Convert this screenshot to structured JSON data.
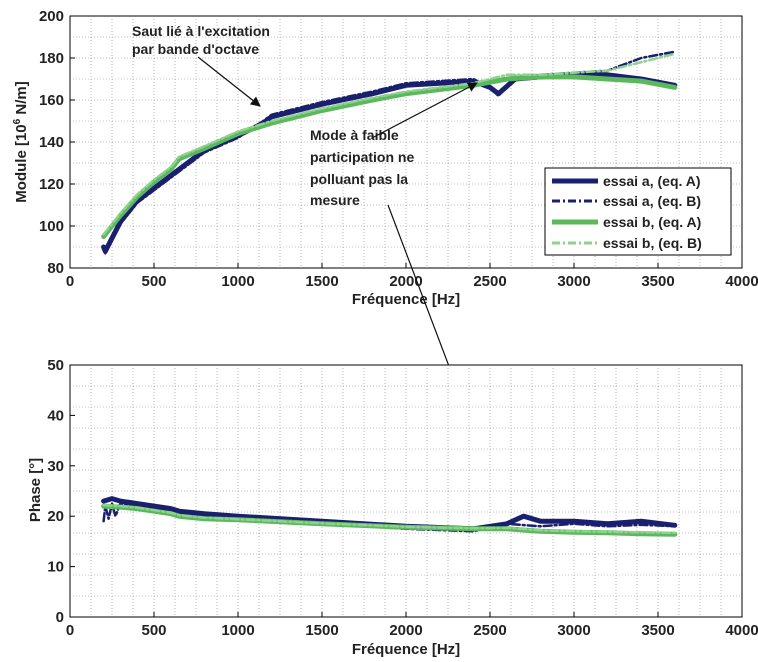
{
  "chart_data": [
    {
      "type": "line",
      "xlabel": "Fréquence [Hz]",
      "ylabel": "Module [10^6 N/m]",
      "xlim": [
        0,
        4000
      ],
      "ylim": [
        80,
        200
      ],
      "xticks": [
        0,
        500,
        1000,
        1500,
        2000,
        2500,
        3000,
        3500,
        4000
      ],
      "yticks": [
        80,
        100,
        120,
        140,
        160,
        180,
        200
      ],
      "grid": "dotted",
      "legend_position": "right",
      "series": [
        {
          "name": "essai a, (eq. A)",
          "color": "#1a1f6e",
          "style": "solid",
          "x": [
            200,
            210,
            300,
            400,
            500,
            600,
            650,
            800,
            1000,
            1150,
            1200,
            1500,
            1800,
            2000,
            2200,
            2400,
            2500,
            2550,
            2650,
            2800,
            3000,
            3200,
            3400,
            3600
          ],
          "y": [
            90,
            88,
            102,
            112,
            118,
            124,
            127,
            136,
            143,
            149,
            152,
            158,
            163,
            167,
            168,
            169,
            166,
            163,
            170,
            171,
            172,
            172,
            170,
            167
          ]
        },
        {
          "name": "essai a, (eq. B)",
          "color": "#1a1f6e",
          "style": "dashdot",
          "x": [
            200,
            210,
            300,
            400,
            500,
            600,
            650,
            800,
            1000,
            1150,
            1200,
            1500,
            1800,
            2000,
            2200,
            2400,
            2500,
            2550,
            2650,
            2800,
            3000,
            3200,
            3400,
            3600
          ],
          "y": [
            89,
            87,
            101,
            111,
            117,
            123,
            126,
            135,
            142,
            150,
            153,
            159,
            164,
            168,
            169,
            170,
            166,
            162,
            171,
            172,
            173,
            174,
            180,
            183
          ]
        },
        {
          "name": "essai b, (eq. A)",
          "color": "#5cb85c",
          "style": "solid",
          "x": [
            200,
            300,
            400,
            500,
            600,
            650,
            800,
            1000,
            1200,
            1500,
            1800,
            2000,
            2200,
            2400,
            2600,
            2800,
            3000,
            3200,
            3400,
            3600
          ],
          "y": [
            95,
            105,
            114,
            121,
            127,
            132,
            137,
            144,
            149,
            155,
            160,
            163,
            165,
            167,
            170,
            171,
            171,
            170,
            169,
            166
          ]
        },
        {
          "name": "essai b, (eq. B)",
          "color": "#8fd18f",
          "style": "dashdot",
          "x": [
            200,
            300,
            400,
            500,
            600,
            650,
            800,
            1000,
            1200,
            1500,
            1800,
            2000,
            2200,
            2400,
            2600,
            2800,
            3000,
            3200,
            3400,
            3600
          ],
          "y": [
            96,
            106,
            115,
            122,
            128,
            133,
            138,
            145,
            150,
            156,
            161,
            164,
            166,
            168,
            172,
            172,
            173,
            174,
            178,
            182
          ]
        }
      ],
      "annotations": [
        {
          "lines": [
            "Saut lié à l'excitation",
            "par bande d'octave"
          ],
          "arrow_to": [
            1150,
            152
          ]
        },
        {
          "lines": [
            "Mode à faible",
            "participation ne",
            "polluant pas la",
            "mesure"
          ],
          "arrow_to": [
            2550,
            170
          ]
        }
      ]
    },
    {
      "type": "line",
      "xlabel": "Fréquence [Hz]",
      "ylabel": "Phase [°]",
      "xlim": [
        0,
        4000
      ],
      "ylim": [
        0,
        50
      ],
      "xticks": [
        0,
        500,
        1000,
        1500,
        2000,
        2500,
        3000,
        3500,
        4000
      ],
      "yticks": [
        0,
        10,
        20,
        30,
        40,
        50
      ],
      "grid": "dotted",
      "series": [
        {
          "name": "essai a, (eq. A)",
          "color": "#1a1f6e",
          "style": "solid",
          "x": [
            200,
            250,
            300,
            400,
            500,
            600,
            650,
            800,
            1000,
            1500,
            2000,
            2400,
            2500,
            2600,
            2700,
            2800,
            3000,
            3200,
            3400,
            3600
          ],
          "y": [
            23,
            23.5,
            23,
            22.5,
            22,
            21.5,
            21,
            20.5,
            20,
            19,
            18,
            17.5,
            18,
            18.5,
            20,
            19,
            19,
            18.5,
            19,
            18.2
          ]
        },
        {
          "name": "essai a, (eq. B)",
          "color": "#1a1f6e",
          "style": "dashdot",
          "x": [
            200,
            210,
            230,
            250,
            270,
            300,
            400,
            500,
            600,
            650,
            800,
            1000,
            1500,
            2000,
            2400,
            2600,
            2800,
            3000,
            3200,
            3400,
            3600
          ],
          "y": [
            19,
            22,
            19.5,
            22.5,
            20,
            22.5,
            22,
            21.5,
            21,
            20.5,
            20,
            19.5,
            18.5,
            17.5,
            17,
            18.5,
            18,
            18.5,
            18,
            18.3,
            18
          ]
        },
        {
          "name": "essai b, (eq. A)",
          "color": "#5cb85c",
          "style": "solid",
          "x": [
            200,
            300,
            400,
            500,
            600,
            650,
            800,
            1000,
            1500,
            2000,
            2400,
            2600,
            2800,
            3000,
            3200,
            3400,
            3600
          ],
          "y": [
            22,
            21.8,
            21.5,
            21,
            20.5,
            20,
            19.5,
            19.3,
            18.5,
            17.8,
            17.5,
            17.5,
            17,
            16.8,
            16.7,
            16.5,
            16.4
          ]
        },
        {
          "name": "essai b, (eq. B)",
          "color": "#8fd18f",
          "style": "dashdot",
          "x": [
            200,
            300,
            400,
            500,
            600,
            650,
            800,
            1000,
            1500,
            2000,
            2400,
            2600,
            2800,
            3000,
            3200,
            3400,
            3600
          ],
          "y": [
            22.2,
            22,
            21.7,
            21.2,
            20.7,
            20.2,
            19.7,
            19.4,
            18.6,
            17.9,
            17.6,
            17.7,
            17.2,
            17,
            16.9,
            16.8,
            16.7
          ]
        }
      ]
    }
  ]
}
